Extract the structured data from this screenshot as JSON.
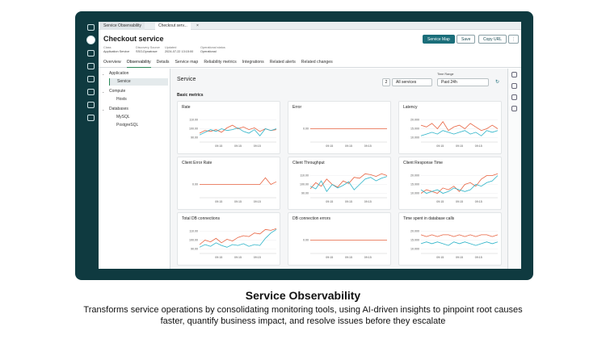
{
  "tabs": [
    "Service Observability",
    "Checkout serv..."
  ],
  "header": {
    "title": "Checkout service",
    "meta": [
      {
        "label": "Class",
        "value": "Application Service"
      },
      {
        "label": "Discovery Source",
        "value": "SSO-Dynatrace"
      },
      {
        "label": "Updated",
        "value": "2024-07-22 13:15:00"
      },
      {
        "label": "Operational status",
        "value": "Operational"
      }
    ],
    "buttons": [
      "Service Map",
      "Save",
      "Copy URL"
    ]
  },
  "nav_tabs": [
    "Overview",
    "Observability",
    "Details",
    "Service map",
    "Reliability metrics",
    "Integrations",
    "Related alerts",
    "Related changes"
  ],
  "tree": [
    {
      "label": "Application",
      "children": [
        "Service"
      ]
    },
    {
      "label": "Compute",
      "children": [
        "Hosts"
      ]
    },
    {
      "label": "Databases",
      "children": [
        "MySQL",
        "PostgreSQL"
      ]
    }
  ],
  "main": {
    "title": "Service",
    "count": 2,
    "filter": "All services",
    "time_label": "Time Range",
    "time_value": "Past 24h",
    "section": "Basic metrics"
  },
  "charts": [
    {
      "title": "Rate",
      "ylim": [
        85,
        115
      ],
      "yticks": [
        {
          "value": 110,
          "label": "110.00"
        },
        {
          "value": 100,
          "label": "100.00"
        },
        {
          "value": 90,
          "label": "90.00"
        }
      ],
      "xlabels": [
        "09:15",
        "09:15",
        "09:15"
      ],
      "series": [
        {
          "color": "#e8623f",
          "values": [
            95,
            98,
            97,
            99,
            96,
            101,
            104,
            100,
            102,
            99,
            101,
            97,
            100,
            98,
            99
          ]
        },
        {
          "color": "#2bb3c8",
          "values": [
            93,
            96,
            99,
            97,
            100,
            98,
            99,
            101,
            97,
            95,
            99,
            92,
            100,
            98,
            100
          ]
        }
      ]
    },
    {
      "title": "Error",
      "ylim": [
        -1,
        1
      ],
      "yticks": [
        {
          "value": 0,
          "label": "0.00"
        }
      ],
      "xlabels": [
        "09:15",
        "09:15",
        "09:15"
      ],
      "series": [
        {
          "color": "#e8623f",
          "values": [
            0,
            0,
            0,
            0,
            0,
            0,
            0,
            0,
            0,
            0,
            0,
            0,
            0,
            0,
            0
          ]
        }
      ]
    },
    {
      "title": "Latency",
      "ylim": [
        7.5,
        22.5
      ],
      "yticks": [
        {
          "value": 20,
          "label": "20.000"
        },
        {
          "value": 15,
          "label": "15.000"
        },
        {
          "value": 10,
          "label": "10.000"
        }
      ],
      "xlabels": [
        "09:15",
        "09:15",
        "09:15"
      ],
      "series": [
        {
          "color": "#e8623f",
          "values": [
            17,
            16,
            18,
            15,
            19,
            14,
            16,
            17,
            15,
            18,
            16,
            14,
            15,
            17,
            15
          ]
        },
        {
          "color": "#2bb3c8",
          "values": [
            11,
            12,
            13,
            12,
            14,
            13,
            12,
            13,
            14,
            12,
            13,
            11,
            14,
            13,
            14
          ]
        }
      ]
    },
    {
      "title": "Client Error Rate",
      "ylim": [
        -1,
        1
      ],
      "yticks": [
        {
          "value": 0,
          "label": "0.00"
        }
      ],
      "xlabels": [
        "09:15",
        "09:15",
        "09:15"
      ],
      "series": [
        {
          "color": "#e8623f",
          "values": [
            0,
            0,
            0,
            0,
            0,
            0,
            0,
            0,
            0,
            0,
            0,
            0,
            0.5,
            0,
            0.2
          ]
        }
      ]
    },
    {
      "title": "Client Throughput",
      "ylim": [
        85,
        115
      ],
      "yticks": [
        {
          "value": 110,
          "label": "110.00"
        },
        {
          "value": 100,
          "label": "100.00"
        },
        {
          "value": 90,
          "label": "90.00"
        }
      ],
      "xlabels": [
        "09:15",
        "09:15",
        "09:15"
      ],
      "series": [
        {
          "color": "#e8623f",
          "values": [
            95,
            102,
            98,
            106,
            100,
            97,
            104,
            101,
            108,
            107,
            112,
            111,
            109,
            112,
            110
          ]
        },
        {
          "color": "#2bb3c8",
          "values": [
            98,
            95,
            104,
            92,
            100,
            96,
            99,
            103,
            94,
            100,
            106,
            108,
            104,
            107,
            109
          ]
        }
      ]
    },
    {
      "title": "Client Response Time",
      "ylim": [
        7.5,
        22.5
      ],
      "yticks": [
        {
          "value": 20,
          "label": "20.000"
        },
        {
          "value": 15,
          "label": "15.000"
        },
        {
          "value": 10,
          "label": "10.000"
        }
      ],
      "xlabels": [
        "09:15",
        "09:15",
        "09:15"
      ],
      "series": [
        {
          "color": "#e8623f",
          "values": [
            10,
            12,
            11,
            10,
            13,
            12,
            14,
            11,
            15,
            16,
            14,
            18,
            20,
            20,
            21
          ]
        },
        {
          "color": "#2bb3c8",
          "values": [
            12,
            10,
            11,
            12,
            10,
            11,
            13,
            12,
            11,
            12,
            15,
            14,
            16,
            17,
            20
          ]
        }
      ]
    },
    {
      "title": "Total DB connections",
      "ylim": [
        85,
        115
      ],
      "yticks": [
        {
          "value": 110,
          "label": "110.00"
        },
        {
          "value": 100,
          "label": "100.00"
        },
        {
          "value": 90,
          "label": "90.00"
        }
      ],
      "xlabels": [
        "09:15",
        "09:15",
        "09:15"
      ],
      "series": [
        {
          "color": "#e8623f",
          "values": [
            95,
            100,
            98,
            102,
            97,
            101,
            99,
            103,
            105,
            104,
            108,
            107,
            112,
            111,
            113
          ]
        },
        {
          "color": "#2bb3c8",
          "values": [
            92,
            95,
            93,
            97,
            94,
            92,
            95,
            94,
            96,
            93,
            95,
            94,
            102,
            108,
            112
          ]
        }
      ]
    },
    {
      "title": "DB connection errors",
      "ylim": [
        -1,
        1
      ],
      "yticks": [
        {
          "value": 0,
          "label": "0.00"
        }
      ],
      "xlabels": [
        "09:15",
        "09:15",
        "09:15"
      ],
      "series": [
        {
          "color": "#e8623f",
          "values": [
            0,
            0,
            0,
            0,
            0,
            0,
            0,
            0,
            0,
            0,
            0,
            0,
            0,
            0,
            0
          ]
        }
      ]
    },
    {
      "title": "Time spent in database calls",
      "ylim": [
        7.5,
        22.5
      ],
      "yticks": [
        {
          "value": 20,
          "label": "20.000"
        },
        {
          "value": 15,
          "label": "15.000"
        },
        {
          "value": 10,
          "label": "10.000"
        }
      ],
      "xlabels": [
        "09:15",
        "09:15",
        "09:15"
      ],
      "series": [
        {
          "color": "#e8623f",
          "values": [
            18,
            17,
            18,
            17,
            18,
            18,
            17,
            18,
            17,
            18,
            17,
            18,
            18,
            17,
            18
          ]
        },
        {
          "color": "#2bb3c8",
          "values": [
            13,
            14,
            13,
            14,
            13,
            12,
            14,
            13,
            14,
            13,
            12,
            13,
            14,
            13,
            14
          ]
        }
      ]
    }
  ],
  "caption": {
    "title": "Service Observability",
    "lines": [
      "Transforms service operations by consolidating monitoring tools, using AI-driven insights to pinpoint root causes",
      "faster, quantify business impact, and resolve issues before they escalate"
    ]
  }
}
